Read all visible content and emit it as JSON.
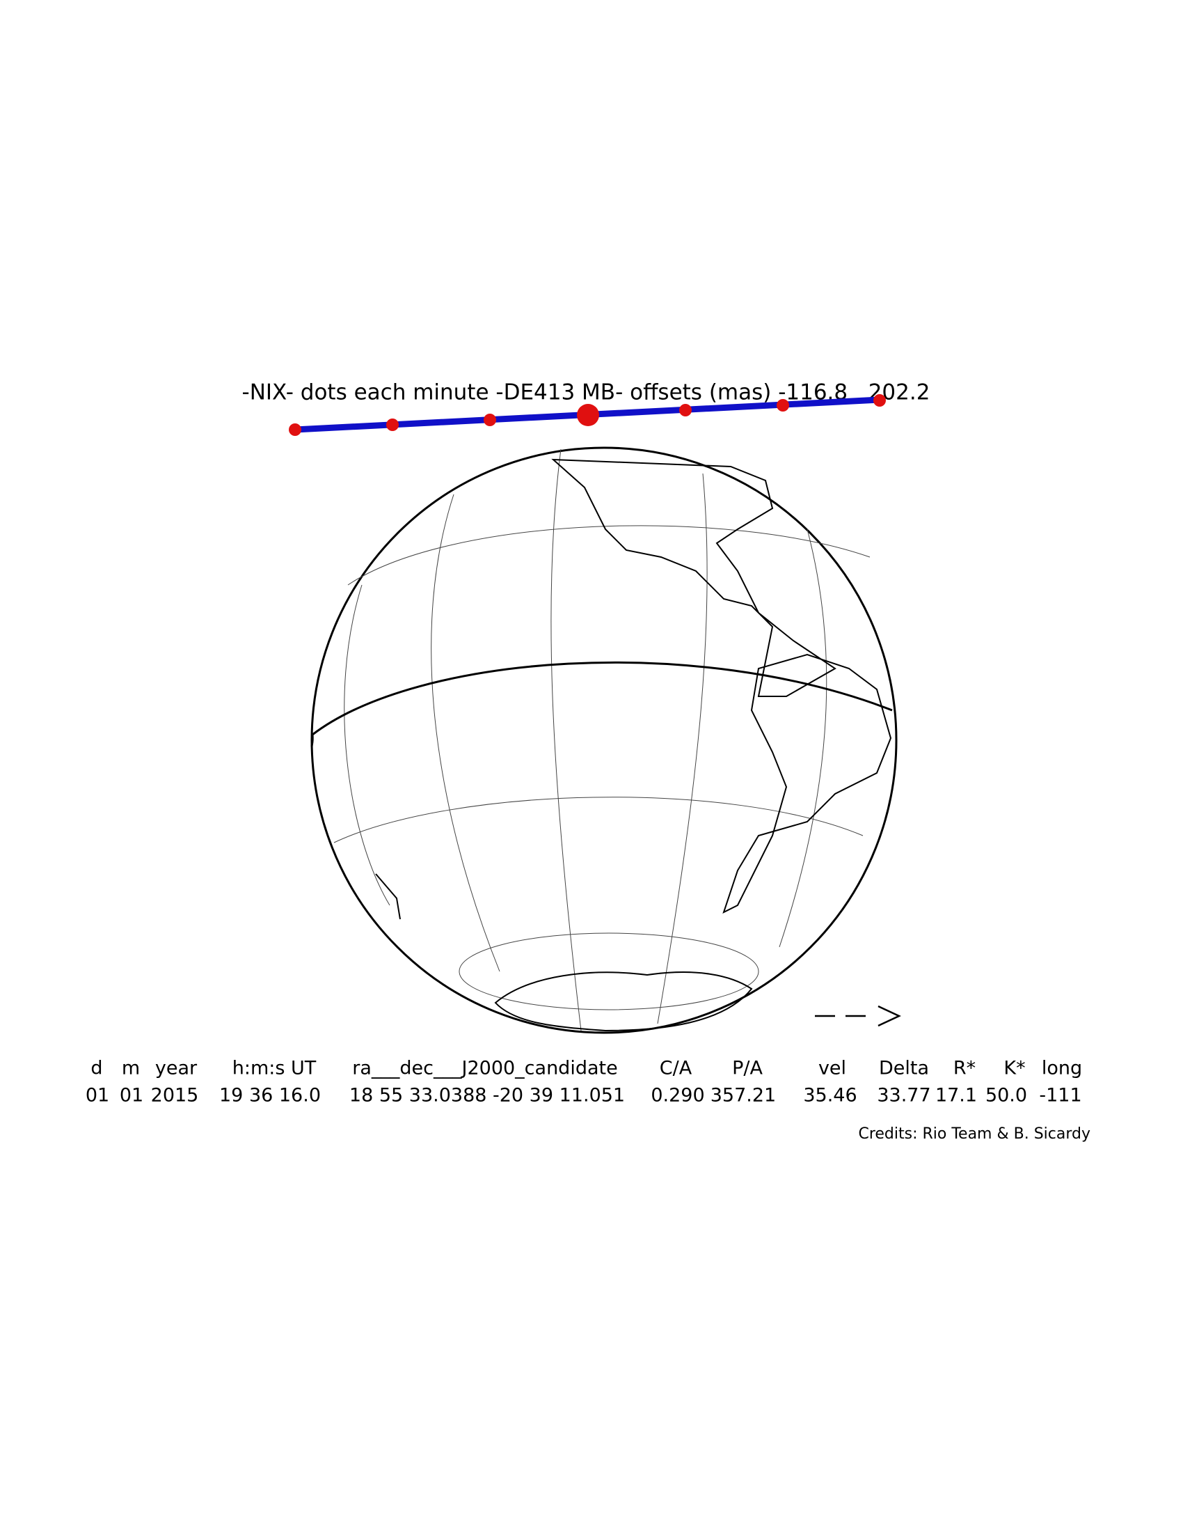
{
  "title": "-NIX- dots each minute -DE413 MB- offsets (mas) -116.8   202.2",
  "table": {
    "header": [
      "d",
      "m",
      "year",
      "h:m:s UT",
      "ra___dec___J2000_candidate",
      "C/A",
      "P/A",
      "vel",
      "Delta",
      "R*",
      "K*",
      "long"
    ],
    "values": [
      "01",
      "01",
      "2015",
      "19 36 16.0",
      "18 55 33.0388 -20 39 11.051",
      "0.290",
      "357.21",
      "35.46",
      "33.77",
      "17.1",
      "50.0",
      "-111"
    ]
  },
  "credits": "Credits: Rio Team & B. Sicardy"
}
